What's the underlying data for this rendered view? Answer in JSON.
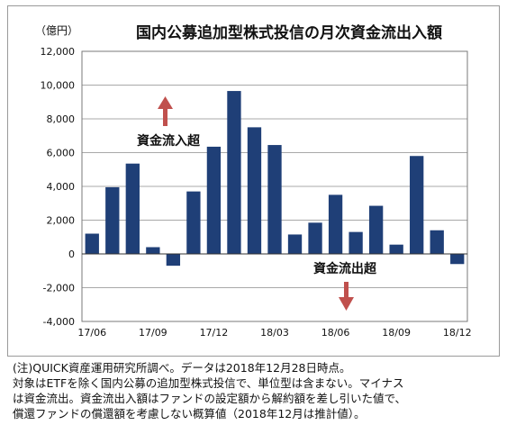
{
  "chart_data": {
    "type": "bar",
    "title": "国内公募追加型株式投信の月次資金流出入額",
    "unit_label": "（億円）",
    "categories": [
      "17/06",
      "17/07",
      "17/08",
      "17/09",
      "17/10",
      "17/11",
      "17/12",
      "18/01",
      "18/02",
      "18/03",
      "18/04",
      "18/05",
      "18/06",
      "18/07",
      "18/08",
      "18/09",
      "18/10",
      "18/11",
      "18/12"
    ],
    "x_tick_labels": [
      "17/06",
      "17/09",
      "17/12",
      "18/03",
      "18/06",
      "18/09",
      "18/12"
    ],
    "values": [
      1200,
      3950,
      5350,
      400,
      -700,
      3700,
      6350,
      9650,
      7500,
      6450,
      1150,
      1850,
      3500,
      1300,
      2850,
      550,
      5800,
      1400,
      -600
    ],
    "ylim": [
      -4000,
      12000
    ],
    "y_ticks": [
      -4000,
      -2000,
      0,
      2000,
      4000,
      6000,
      8000,
      10000,
      12000
    ],
    "y_tick_labels": [
      "-4,000",
      "-2,000",
      "0",
      "2,000",
      "4,000",
      "6,000",
      "8,000",
      "10,000",
      "12,000"
    ],
    "grid": true,
    "bar_color": "#1f3f77",
    "annotations": {
      "inflow_label": "資金流入超",
      "outflow_label": "資金流出超",
      "arrow_color": "#c0504d"
    }
  },
  "note": {
    "lines": [
      "(注)QUICK資産運用研究所調べ。データは2018年12月28日時点。",
      "対象はETFを除く国内公募の追加型株式投信で、単位型は含まない。マイナス",
      "は資金流出。資金流出入額はファンドの設定額から解約額を差し引いた値で、",
      "償還ファンドの償還額を考慮しない概算値（2018年12月は推計値）。"
    ]
  }
}
